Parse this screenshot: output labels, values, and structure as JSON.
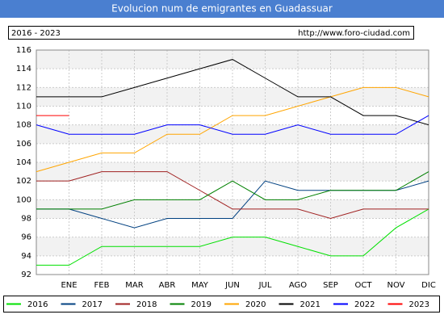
{
  "chart_data": {
    "type": "line",
    "title": "Evolucion num de emigrantes en Guadassuar",
    "subtitle": "2016 - 2023",
    "source": "http://www.foro-ciudad.com",
    "categories": [
      null,
      "ENE",
      "FEB",
      "MAR",
      "ABR",
      "MAY",
      "JUN",
      "JUL",
      "AGO",
      "SEP",
      "OCT",
      "NOV",
      "DIC"
    ],
    "ylim": [
      92,
      116
    ],
    "yticks": [
      92,
      94,
      96,
      98,
      100,
      102,
      104,
      106,
      108,
      110,
      112,
      114,
      116
    ],
    "grid": true,
    "legend": "bottom",
    "series": [
      {
        "name": "2016",
        "color": "#00e000",
        "values": [
          93,
          93,
          95,
          95,
          95,
          95,
          96,
          96,
          95,
          94,
          94,
          97,
          99
        ]
      },
      {
        "name": "2017",
        "color": "#004080",
        "values": [
          99,
          99,
          98,
          97,
          98,
          98,
          98,
          102,
          101,
          101,
          101,
          101,
          102
        ]
      },
      {
        "name": "2018",
        "color": "#a02020",
        "values": [
          102,
          102,
          103,
          103,
          103,
          101,
          99,
          99,
          99,
          98,
          99,
          99,
          99
        ]
      },
      {
        "name": "2019",
        "color": "#008000",
        "values": [
          99,
          99,
          99,
          100,
          100,
          100,
          102,
          100,
          100,
          101,
          101,
          101,
          103
        ]
      },
      {
        "name": "2020",
        "color": "#ffa500",
        "values": [
          103,
          104,
          105,
          105,
          107,
          107,
          109,
          109,
          110,
          111,
          112,
          112,
          111
        ]
      },
      {
        "name": "2021",
        "color": "#000000",
        "values": [
          111,
          111,
          111,
          112,
          113,
          114,
          115,
          113,
          111,
          111,
          109,
          109,
          108
        ]
      },
      {
        "name": "2022",
        "color": "#0000ff",
        "values": [
          108,
          107,
          107,
          107,
          108,
          108,
          107,
          107,
          108,
          107,
          107,
          107,
          109
        ]
      },
      {
        "name": "2023",
        "color": "#ff0000",
        "values": [
          109,
          109,
          null,
          null,
          null,
          null,
          null,
          null,
          null,
          null,
          null,
          null,
          null
        ]
      }
    ]
  }
}
